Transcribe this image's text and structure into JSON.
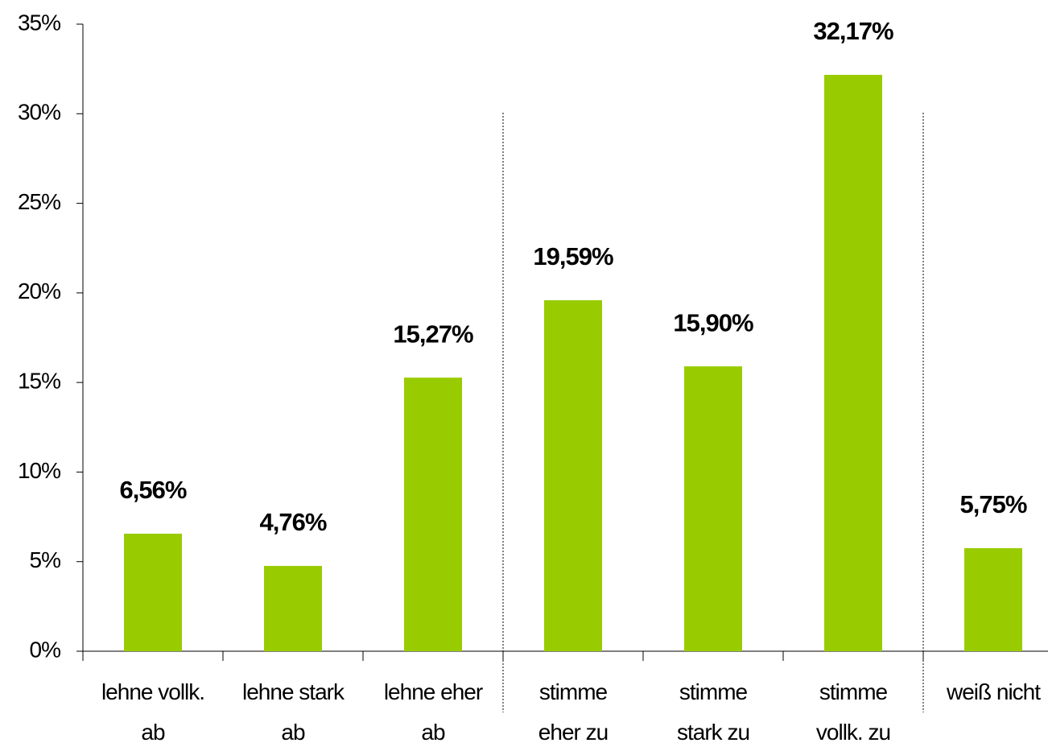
{
  "chart_data": {
    "type": "bar",
    "categories": [
      [
        "lehne vollk.",
        "ab"
      ],
      [
        "lehne stark",
        "ab"
      ],
      [
        "lehne eher",
        "ab"
      ],
      [
        "stimme",
        "eher zu"
      ],
      [
        "stimme",
        "stark zu"
      ],
      [
        "stimme",
        "vollk. zu"
      ],
      [
        "weiß nicht"
      ]
    ],
    "values": [
      6.56,
      4.76,
      15.27,
      19.59,
      15.9,
      32.17,
      5.75
    ],
    "value_labels": [
      "6,56%",
      "4,76%",
      "15,27%",
      "19,59%",
      "15,90%",
      "32,17%",
      "5,75%"
    ],
    "color": "#99cc00",
    "ylim": [
      0,
      35
    ],
    "yticks": [
      {
        "value": 0,
        "label": "0%"
      },
      {
        "value": 5,
        "label": "5%"
      },
      {
        "value": 10,
        "label": "10%"
      },
      {
        "value": 15,
        "label": "15%"
      },
      {
        "value": 20,
        "label": "20%"
      },
      {
        "value": 25,
        "label": "25%"
      },
      {
        "value": 30,
        "label": "30%"
      },
      {
        "value": 35,
        "label": "35%"
      }
    ]
  }
}
